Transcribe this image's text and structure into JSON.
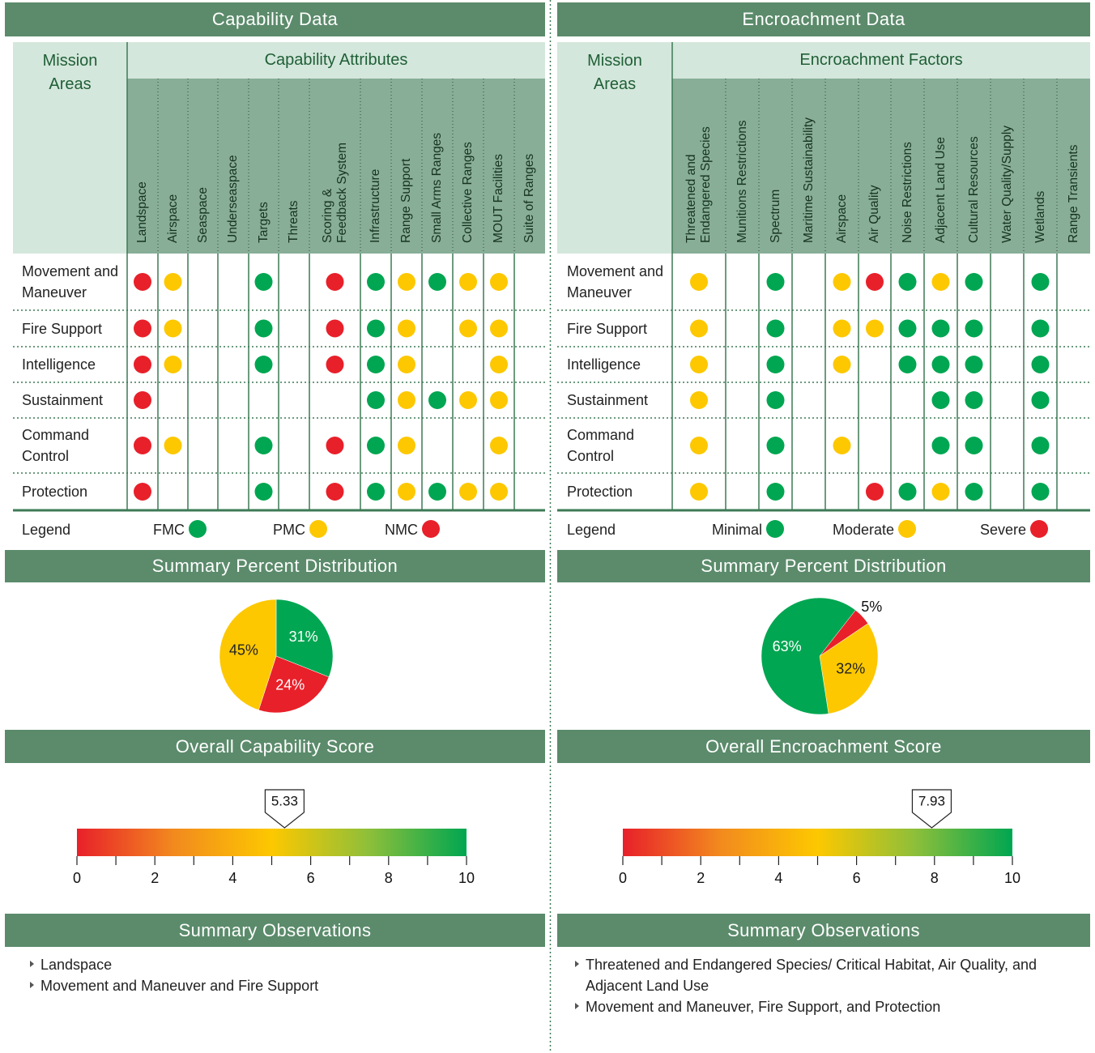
{
  "panels": [
    {
      "title": "Capability Data",
      "corner": "Mission Areas",
      "group": "Capability Attributes",
      "columns": [
        "Landspace",
        "Airspace",
        "Seaspace",
        "Underseaspace",
        "Targets",
        "Threats",
        "Scoring &\nFeedback System",
        "Infrastructure",
        "Range Support",
        "Small Arms Ranges",
        "Collective Ranges",
        "MOUT Facilities",
        "Suite of Ranges"
      ],
      "rows": [
        "Movement and Maneuver",
        "Fire Support",
        "Intelligence",
        "Sustainment",
        "Command Control",
        "Protection"
      ],
      "cells": [
        [
          "#e8202a",
          "#fdc800",
          null,
          null,
          "#00a651",
          null,
          "#e8202a",
          "#00a651",
          "#fdc800",
          "#00a651",
          "#fdc800",
          "#fdc800",
          null
        ],
        [
          "#e8202a",
          "#fdc800",
          null,
          null,
          "#00a651",
          null,
          "#e8202a",
          "#00a651",
          "#fdc800",
          null,
          "#fdc800",
          "#fdc800",
          null
        ],
        [
          "#e8202a",
          "#fdc800",
          null,
          null,
          "#00a651",
          null,
          "#e8202a",
          "#00a651",
          "#fdc800",
          null,
          null,
          "#fdc800",
          null
        ],
        [
          "#e8202a",
          null,
          null,
          null,
          null,
          null,
          null,
          "#00a651",
          "#fdc800",
          "#00a651",
          "#fdc800",
          "#fdc800",
          null
        ],
        [
          "#e8202a",
          "#fdc800",
          null,
          null,
          "#00a651",
          null,
          "#e8202a",
          "#00a651",
          "#fdc800",
          null,
          null,
          "#fdc800",
          null
        ],
        [
          "#e8202a",
          null,
          null,
          null,
          "#00a651",
          null,
          "#e8202a",
          "#00a651",
          "#fdc800",
          "#00a651",
          "#fdc800",
          "#fdc800",
          null
        ]
      ],
      "legend_title": "Legend",
      "legend": [
        {
          "label": "FMC",
          "color": "#00a651"
        },
        {
          "label": "PMC",
          "color": "#fdc800"
        },
        {
          "label": "NMC",
          "color": "#e8202a"
        }
      ],
      "distribution": {
        "title": "Summary Percent Distribution",
        "type": "pie",
        "values": [
          31,
          24,
          45
        ],
        "value_labels": [
          "31%",
          "24%",
          "45%"
        ],
        "colors": [
          "#00a651",
          "#e8202a",
          "#fdc800"
        ]
      },
      "score": {
        "title": "Overall Capability Score",
        "value": 5.33,
        "xlim": [
          0,
          10
        ],
        "xticks": [
          0,
          2,
          4,
          6,
          8,
          10
        ],
        "minor_xticks": [
          1,
          3,
          5,
          7,
          9
        ]
      },
      "observations": {
        "title": "Summary Observations",
        "items": [
          "Landspace",
          "Movement and Maneuver and Fire Support"
        ]
      }
    },
    {
      "title": "Encroachment Data",
      "corner": "Mission Areas",
      "group": "Encroachment Factors",
      "columns": [
        "Threatened and\nEndangered Species",
        "Munitions Restrictions",
        "Spectrum",
        "Maritime Sustainability",
        "Airspace",
        "Air Quality",
        "Noise Restrictions",
        "Adjacent Land Use",
        "Cultural Resources",
        "Water Quality/Supply",
        "Wetlands",
        "Range Transients"
      ],
      "rows": [
        "Movement and Maneuver",
        "Fire Support",
        "Intelligence",
        "Sustainment",
        "Command Control",
        "Protection"
      ],
      "cells": [
        [
          "#fdc800",
          null,
          "#00a651",
          null,
          "#fdc800",
          "#e8202a",
          "#00a651",
          "#fdc800",
          "#00a651",
          null,
          "#00a651",
          null
        ],
        [
          "#fdc800",
          null,
          "#00a651",
          null,
          "#fdc800",
          "#fdc800",
          "#00a651",
          "#00a651",
          "#00a651",
          null,
          "#00a651",
          null
        ],
        [
          "#fdc800",
          null,
          "#00a651",
          null,
          "#fdc800",
          null,
          "#00a651",
          "#00a651",
          "#00a651",
          null,
          "#00a651",
          null
        ],
        [
          "#fdc800",
          null,
          "#00a651",
          null,
          null,
          null,
          null,
          "#00a651",
          "#00a651",
          null,
          "#00a651",
          null
        ],
        [
          "#fdc800",
          null,
          "#00a651",
          null,
          "#fdc800",
          null,
          null,
          "#00a651",
          "#00a651",
          null,
          "#00a651",
          null
        ],
        [
          "#fdc800",
          null,
          "#00a651",
          null,
          null,
          "#e8202a",
          "#00a651",
          "#fdc800",
          "#00a651",
          null,
          "#00a651",
          null
        ]
      ],
      "legend_title": "Legend",
      "legend": [
        {
          "label": "Minimal",
          "color": "#00a651"
        },
        {
          "label": "Moderate",
          "color": "#fdc800"
        },
        {
          "label": "Severe",
          "color": "#e8202a"
        }
      ],
      "distribution": {
        "title": "Summary Percent Distribution",
        "type": "pie",
        "values": [
          5,
          32,
          63
        ],
        "value_labels": [
          "5%",
          "32%",
          "63%"
        ],
        "colors": [
          "#e8202a",
          "#fdc800",
          "#00a651"
        ]
      },
      "score": {
        "title": "Overall Encroachment Score",
        "value": 7.93,
        "xlim": [
          0,
          10
        ],
        "xticks": [
          0,
          2,
          4,
          6,
          8,
          10
        ],
        "minor_xticks": [
          1,
          3,
          5,
          7,
          9
        ]
      },
      "observations": {
        "title": "Summary Observations",
        "items": [
          "Threatened and Endangered Species/ Critical Habitat, Air Quality, and Adjacent Land Use",
          "Movement and Maneuver, Fire Support, and Protection"
        ]
      }
    }
  ]
}
